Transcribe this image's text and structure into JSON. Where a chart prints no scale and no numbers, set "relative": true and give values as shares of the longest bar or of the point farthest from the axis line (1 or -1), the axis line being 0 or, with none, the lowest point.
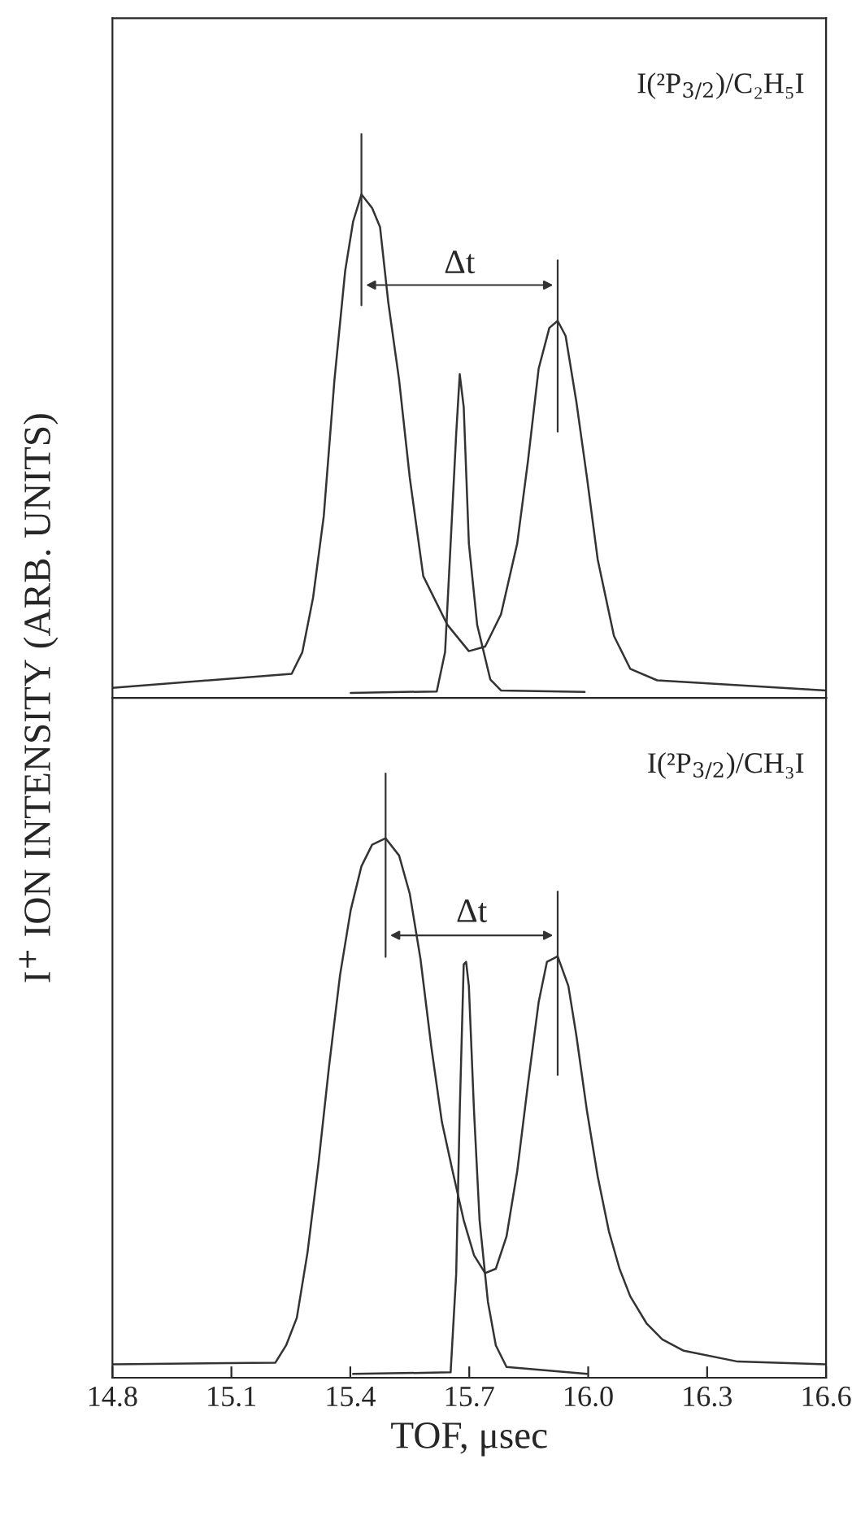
{
  "chart_data": [
    {
      "type": "line",
      "relative": true,
      "ylabel": "I$^{+}$ ION INTENSITY (ARB. UNITS)",
      "xlim": [
        14.8,
        16.6
      ],
      "tick_labels": false,
      "grid": false,
      "marker": "none",
      "line_style": "solid",
      "annotations": [
        "I(²P$_{3/2}$)/C₂H₅I",
        "Δt"
      ],
      "series": [
        {
          "color": "#333333",
          "x": [
            14.8,
            15.252,
            15.279,
            15.306,
            15.333,
            15.36,
            15.387,
            15.407,
            15.428,
            15.455,
            15.475,
            15.496,
            15.523,
            15.55,
            15.584,
            15.645,
            15.699,
            15.74,
            15.78,
            15.821,
            15.848,
            15.875,
            15.902,
            15.923,
            15.943,
            15.97,
            15.997,
            16.024,
            16.065,
            16.106,
            16.174,
            16.6
          ],
          "values": [
            0.02,
            0.048,
            0.091,
            0.199,
            0.361,
            0.632,
            0.848,
            0.946,
            1.0,
            0.973,
            0.935,
            0.784,
            0.632,
            0.437,
            0.242,
            0.145,
            0.093,
            0.102,
            0.166,
            0.307,
            0.47,
            0.654,
            0.735,
            0.749,
            0.719,
            0.589,
            0.437,
            0.275,
            0.123,
            0.058,
            0.035,
            0.015
          ]
        },
        {
          "color": "#333333",
          "x": [
            15.401,
            15.618,
            15.639,
            15.653,
            15.667,
            15.676,
            15.686,
            15.699,
            15.72,
            15.753,
            15.78,
            15.991
          ],
          "values": [
            0.01,
            0.013,
            0.091,
            0.307,
            0.524,
            0.643,
            0.578,
            0.307,
            0.145,
            0.037,
            0.015,
            0.012
          ]
        }
      ]
    },
    {
      "type": "line",
      "relative": true,
      "xlabel": "TOF, μsec",
      "xlim": [
        14.8,
        16.6
      ],
      "xticks": [
        14.8,
        15.1,
        15.4,
        15.7,
        {
          "value": 16.0,
          "label": "16.0"
        },
        16.3,
        16.6
      ],
      "tick_labels": "x",
      "grid": false,
      "marker": "none",
      "line_style": "solid",
      "annotations": [
        "I(²P$_{3/2}$)/CH₃I",
        "Δt"
      ],
      "series": [
        {
          "color": "#333333",
          "x": [
            14.8,
            15.211,
            15.238,
            15.265,
            15.292,
            15.319,
            15.346,
            15.374,
            15.401,
            15.428,
            15.455,
            15.489,
            15.523,
            15.55,
            15.577,
            15.604,
            15.631,
            15.658,
            15.686,
            15.712,
            15.74,
            15.767,
            15.794,
            15.821,
            15.848,
            15.875,
            15.896,
            15.923,
            15.95,
            15.97,
            15.997,
            16.024,
            16.052,
            16.079,
            16.106,
            16.147,
            16.187,
            16.241,
            16.377,
            16.6
          ],
          "values": [
            0.025,
            0.028,
            0.06,
            0.111,
            0.232,
            0.393,
            0.575,
            0.746,
            0.867,
            0.948,
            0.988,
            1.0,
            0.968,
            0.897,
            0.776,
            0.615,
            0.474,
            0.383,
            0.292,
            0.227,
            0.194,
            0.202,
            0.262,
            0.383,
            0.544,
            0.696,
            0.771,
            0.781,
            0.726,
            0.635,
            0.494,
            0.373,
            0.272,
            0.202,
            0.151,
            0.101,
            0.071,
            0.05,
            0.03,
            0.025
          ]
        },
        {
          "color": "#333333",
          "x": [
            15.407,
            15.653,
            15.667,
            15.676,
            15.686,
            15.692,
            15.699,
            15.712,
            15.726,
            15.747,
            15.767,
            15.794,
            15.997
          ],
          "values": [
            0.007,
            0.01,
            0.192,
            0.494,
            0.766,
            0.771,
            0.726,
            0.494,
            0.292,
            0.141,
            0.06,
            0.02,
            0.007
          ]
        }
      ]
    }
  ]
}
